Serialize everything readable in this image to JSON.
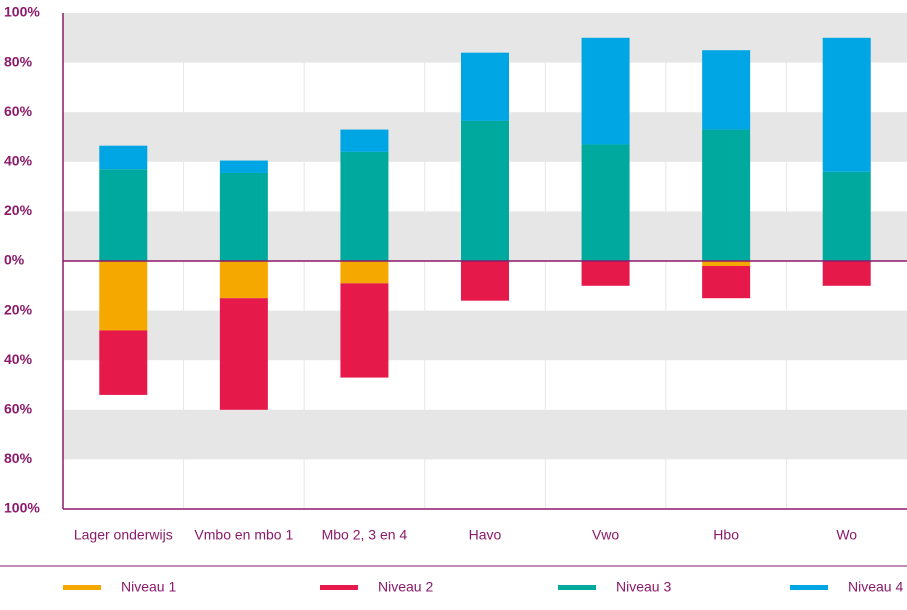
{
  "chart_data": {
    "type": "bar",
    "stacked": true,
    "categories": [
      "Lager onderwijs",
      "Vmbo en mbo 1",
      "Mbo 2, 3 en 4",
      "Havo",
      "Vwo",
      "Hbo",
      "Wo"
    ],
    "series": [
      {
        "name": "Niveau 1",
        "color": "#f5a800",
        "values": [
          -28,
          -15,
          -9,
          0,
          0,
          -2,
          0
        ]
      },
      {
        "name": "Niveau 2",
        "color": "#e5194a",
        "values": [
          -26,
          -45,
          -38,
          -16,
          -10,
          -13,
          -10
        ]
      },
      {
        "name": "Niveau 3",
        "color": "#00a99d",
        "values": [
          37,
          35.5,
          44,
          56.5,
          47,
          53,
          36
        ]
      },
      {
        "name": "Niveau 4",
        "color": "#00a5e3",
        "values": [
          9.5,
          5,
          9,
          27.5,
          43,
          32,
          54
        ]
      }
    ],
    "ylim": [
      -100,
      100
    ],
    "yticks": [
      {
        "value": 100,
        "label": "100%"
      },
      {
        "value": 80,
        "label": "80%"
      },
      {
        "value": 60,
        "label": "60%"
      },
      {
        "value": 40,
        "label": "40%"
      },
      {
        "value": 20,
        "label": "20%"
      },
      {
        "value": 0,
        "label": "0%"
      },
      {
        "value": -20,
        "label": "20%"
      },
      {
        "value": -40,
        "label": "40%"
      },
      {
        "value": -60,
        "label": "60%"
      },
      {
        "value": -80,
        "label": "80%"
      },
      {
        "value": -100,
        "label": "100%"
      }
    ],
    "grid": true,
    "legend": "bottom"
  }
}
